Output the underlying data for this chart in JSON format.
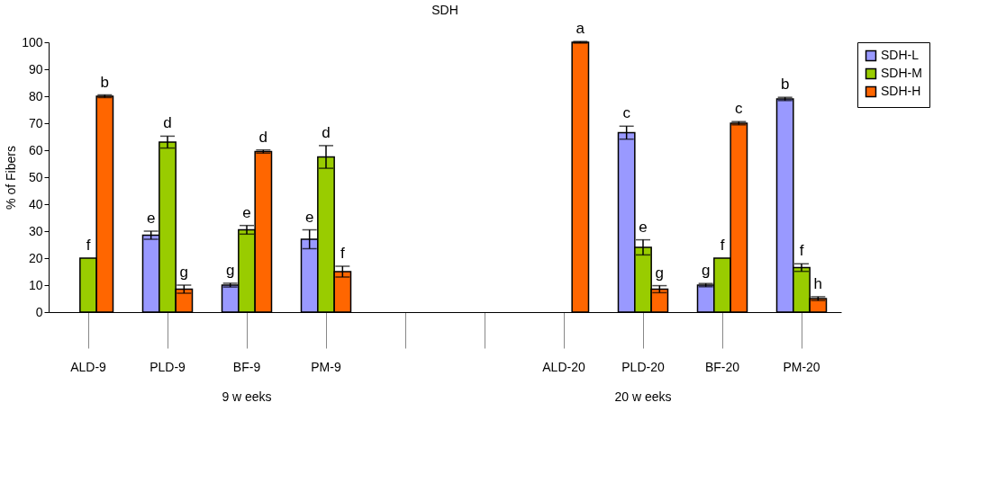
{
  "chart_data": {
    "type": "bar",
    "title": "SDH",
    "ylabel": "% of Fibers",
    "categories": [
      "ALD-9",
      "PLD-9",
      "BF-9",
      "PM-9",
      null,
      null,
      "ALD-20",
      "PLD-20",
      "BF-20",
      "PM-20"
    ],
    "series": [
      {
        "name": "SDH-L",
        "color": "#9999ff",
        "values": [
          0,
          28.5,
          10,
          27,
          null,
          null,
          0,
          66.5,
          10,
          79
        ],
        "errors": [
          null,
          1.5,
          0.7,
          3.5,
          null,
          null,
          null,
          2.4,
          0.6,
          0.6
        ],
        "value_labels": [
          null,
          "e",
          "g",
          "e",
          null,
          null,
          null,
          "c",
          "g",
          "b"
        ]
      },
      {
        "name": "SDH-M",
        "color": "#99cc00",
        "values": [
          20,
          63,
          30.5,
          57.5,
          null,
          null,
          0,
          24,
          20,
          16.5
        ],
        "errors": [
          null,
          2.2,
          1.6,
          4.2,
          null,
          null,
          null,
          2.8,
          null,
          1.4
        ],
        "value_labels": [
          "f",
          "d",
          "e",
          "d",
          null,
          null,
          null,
          "e",
          "f",
          "f"
        ]
      },
      {
        "name": "SDH-H",
        "color": "#ff6600",
        "values": [
          80,
          8.5,
          59.5,
          15,
          null,
          null,
          100,
          8.5,
          70,
          5
        ],
        "errors": [
          0.5,
          1.5,
          0.6,
          2,
          null,
          null,
          0.3,
          1.3,
          0.6,
          0.7
        ],
        "value_labels": [
          "b",
          "g",
          "d",
          "f",
          null,
          null,
          "a",
          "g",
          "c",
          "h"
        ]
      }
    ],
    "ylim": [
      0,
      100
    ],
    "yticks": [
      0,
      10,
      20,
      30,
      40,
      50,
      60,
      70,
      80,
      90,
      100
    ],
    "annotations": [
      "9 w eeks",
      "20 w eeks"
    ],
    "legend": "right",
    "grid": false
  }
}
